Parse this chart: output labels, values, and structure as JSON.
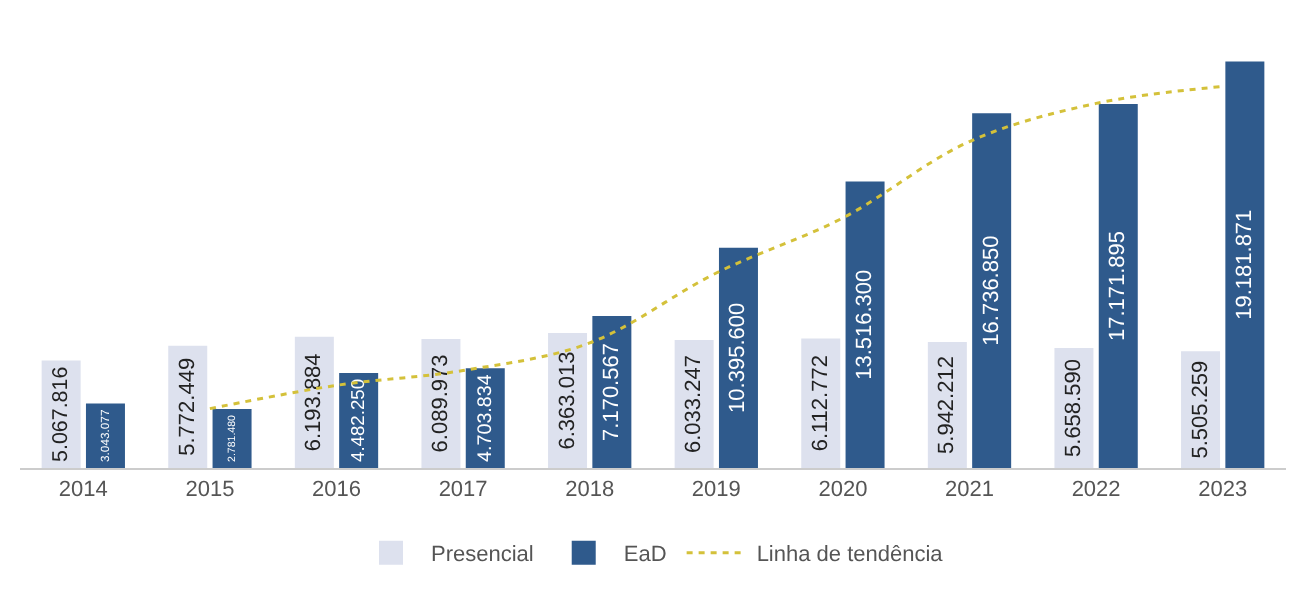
{
  "chart_data": {
    "type": "bar",
    "categories": [
      "2014",
      "2015",
      "2016",
      "2017",
      "2018",
      "2019",
      "2020",
      "2021",
      "2022",
      "2023"
    ],
    "series": [
      {
        "name": "Presencial",
        "color": "#dde1ee",
        "values": [
          5067816,
          5772449,
          6193884,
          6089973,
          6363013,
          6033247,
          6112772,
          5942212,
          5658590,
          5505259
        ],
        "value_labels": [
          "5.067.816",
          "5.772.449",
          "6.193.884",
          "6.089.973",
          "6.363.013",
          "6.033.247",
          "6.112.772",
          "5.942.212",
          "5.658.590",
          "5.505.259"
        ]
      },
      {
        "name": "EaD",
        "color": "#2f5a8c",
        "values": [
          3043077,
          2781480,
          4482250,
          4703834,
          7170567,
          10395600,
          13516300,
          16736850,
          17171895,
          19181871
        ],
        "value_labels": [
          "3.043.077",
          "2.781.480",
          "4.482.250",
          "4.703.834",
          "7.170.567",
          "10.395.600",
          "13.516.300",
          "16.736.850",
          "17.171.895",
          "19.181.871"
        ]
      },
      {
        "name": "Linha de tendência",
        "type": "line",
        "color": "#d4c13a",
        "line_style": "dotted",
        "values": [
          null,
          2800000,
          3900000,
          4600000,
          5900000,
          9200000,
          11800000,
          15400000,
          17200000,
          18000000
        ]
      }
    ],
    "legend": "bottom",
    "grid": false
  }
}
